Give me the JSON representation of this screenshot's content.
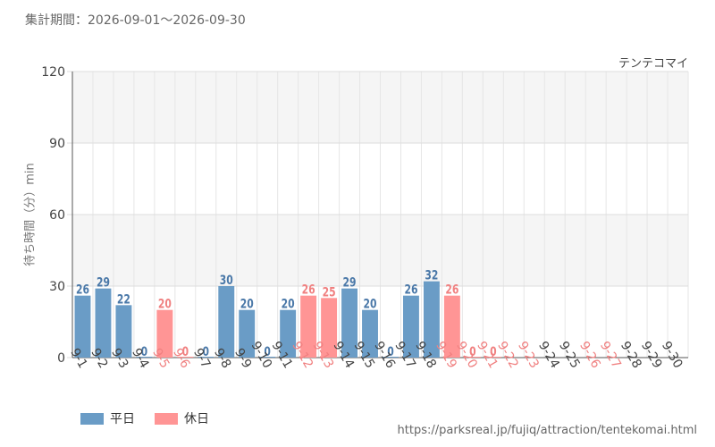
{
  "header": {
    "period": "集計期間：2026-09-01～2026-09-30"
  },
  "footer": {
    "source_url": "https://parksreal.jp/fujiq/attraction/tentekomai.html"
  },
  "chart_data": {
    "type": "bar",
    "series_name": "テンテコマイ",
    "ylabel": "待ち時間（分）min",
    "xlabel": "",
    "ylim": [
      0,
      120
    ],
    "yticks": [
      0,
      30,
      60,
      90,
      120
    ],
    "grid": true,
    "legend_position": "bottom-left",
    "legend": [
      {
        "label": "平日",
        "color": "#6a9cc6"
      },
      {
        "label": "休日",
        "color": "#ff9595"
      }
    ],
    "categories": [
      "9-1",
      "9-2",
      "9-3",
      "9-4",
      "9-5",
      "9-6",
      "9-7",
      "9-8",
      "9-9",
      "9-10",
      "9-11",
      "9-12",
      "9-13",
      "9-14",
      "9-15",
      "9-16",
      "9-17",
      "9-18",
      "9-19",
      "9-20",
      "9-21",
      "9-22",
      "9-23",
      "9-24",
      "9-25",
      "9-26",
      "9-27",
      "9-28",
      "9-29",
      "9-30"
    ],
    "values": [
      26,
      29,
      22,
      0,
      20,
      0,
      0,
      30,
      20,
      0,
      20,
      26,
      25,
      29,
      20,
      0,
      26,
      32,
      26,
      0,
      0,
      null,
      null,
      null,
      null,
      null,
      null,
      null,
      null,
      null
    ],
    "day_type": [
      "weekday",
      "weekday",
      "weekday",
      "weekday",
      "holiday",
      "holiday",
      "weekday",
      "weekday",
      "weekday",
      "weekday",
      "weekday",
      "holiday",
      "holiday",
      "weekday",
      "weekday",
      "weekday",
      "weekday",
      "weekday",
      "holiday",
      "holiday",
      "holiday",
      "holiday",
      "holiday",
      "weekday",
      "weekday",
      "holiday",
      "holiday",
      "weekday",
      "weekday",
      "weekday"
    ]
  }
}
